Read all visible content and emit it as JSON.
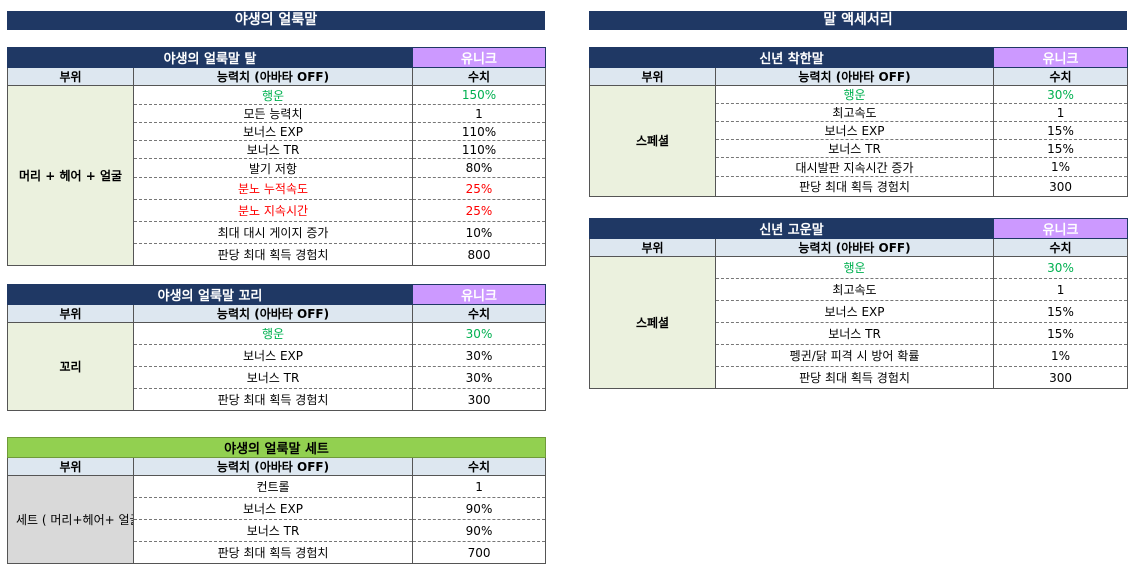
{
  "sections": {
    "left": "야생의 얼룩말",
    "right": "말 액세서리"
  },
  "col_headers": {
    "part": "부위",
    "stat": "능력치 (아바타 OFF)",
    "value": "수치"
  },
  "colors": {
    "header_navy": "#1f3864",
    "unique_purple": "#cc99ff",
    "set_green": "#92d050",
    "luck_green": "#00b050",
    "rage_red": "#ff0000"
  },
  "tables": {
    "mount": {
      "name": "야생의 얼룩말 탈",
      "tag": "유니크",
      "part": "머리 + 헤어 + 얼굴",
      "rows": [
        {
          "stat": "행운",
          "value": "150%"
        },
        {
          "stat": "모든 능력치",
          "value": "1"
        },
        {
          "stat": "보너스 EXP",
          "value": "110%"
        },
        {
          "stat": "보너스 TR",
          "value": "110%"
        },
        {
          "stat": "발기 저항",
          "value": "80%"
        },
        {
          "stat": "분노 누적속도",
          "value": "25%"
        },
        {
          "stat": "분노 지속시간",
          "value": "25%"
        },
        {
          "stat": "최대 대시 게이지 증가",
          "value": "10%"
        },
        {
          "stat": "판당 최대 획득 경험치",
          "value": "800"
        }
      ]
    },
    "tail": {
      "name": "야생의 얼룩말 꼬리",
      "tag": "유니크",
      "part": "꼬리",
      "rows": [
        {
          "stat": "행운",
          "value": "30%"
        },
        {
          "stat": "보너스 EXP",
          "value": "30%"
        },
        {
          "stat": "보너스 TR",
          "value": "30%"
        },
        {
          "stat": "판당 최대 획득 경험치",
          "value": "300"
        }
      ]
    },
    "set": {
      "name": "야생의 얼룩말 세트",
      "part": "세트 ( 머리+헤어+ 얼굴 + 꼬리 )",
      "rows": [
        {
          "stat": "컨트롤",
          "value": "1"
        },
        {
          "stat": "보너스 EXP",
          "value": "90%"
        },
        {
          "stat": "보너스 TR",
          "value": "90%"
        },
        {
          "stat": "판당 최대 획득 경험치",
          "value": "700"
        }
      ]
    },
    "good_horse": {
      "name": "신년 착한말",
      "tag": "유니크",
      "part": "스페셜",
      "rows": [
        {
          "stat": "행운",
          "value": "30%"
        },
        {
          "stat": "최고속도",
          "value": "1"
        },
        {
          "stat": "보너스 EXP",
          "value": "15%"
        },
        {
          "stat": "보너스 TR",
          "value": "15%"
        },
        {
          "stat": "대시발판 지속시간 증가",
          "value": "1%"
        },
        {
          "stat": "판당 최대 획득 경험치",
          "value": "300"
        }
      ]
    },
    "lucky_horse": {
      "name": "신년 고운말",
      "tag": "유니크",
      "part": "스페셜",
      "rows": [
        {
          "stat": "행운",
          "value": "30%"
        },
        {
          "stat": "최고속도",
          "value": "1"
        },
        {
          "stat": "보너스 EXP",
          "value": "15%"
        },
        {
          "stat": "보너스 TR",
          "value": "15%"
        },
        {
          "stat": "펭귄/닭 피격 시 방어 확률",
          "value": "1%"
        },
        {
          "stat": "판당 최대 획득 경험치",
          "value": "300"
        }
      ]
    }
  }
}
